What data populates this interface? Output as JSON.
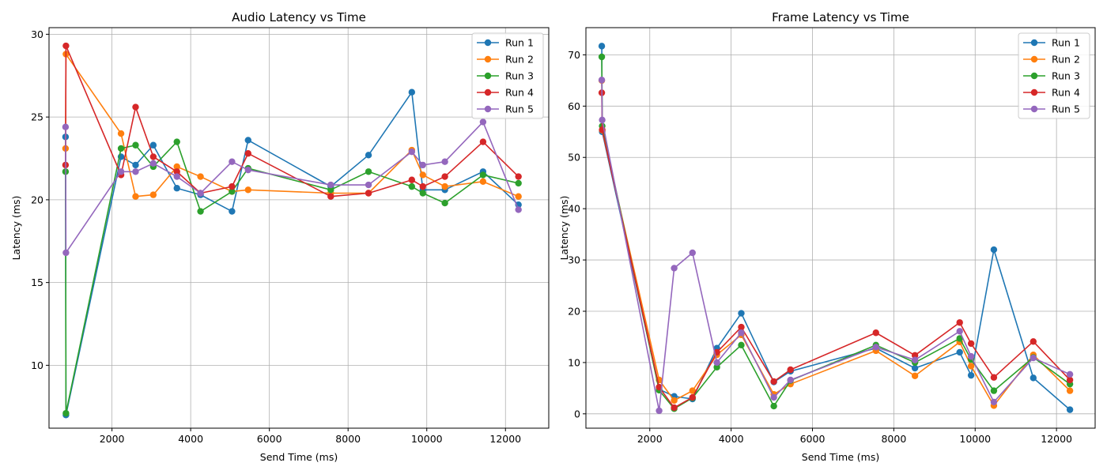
{
  "figure": {
    "background": "#ffffff"
  },
  "charts": [
    {
      "type": "line",
      "title": "Audio Latency vs Time",
      "xlabel": "Send Time (ms)",
      "ylabel": "Latency (ms)",
      "xlim": [
        400,
        13100
      ],
      "ylim": [
        6.2,
        30.4
      ],
      "xticks": [
        2000,
        4000,
        6000,
        8000,
        10000,
        12000
      ],
      "yticks": [
        10,
        15,
        20,
        25,
        30
      ],
      "grid": true,
      "legend_position": "top-right",
      "series": [
        {
          "name": "Run 1",
          "color": "#1f77b4",
          "points": [
            [
              820,
              23.8
            ],
            [
              830,
              7.0
            ],
            [
              2230,
              22.6
            ],
            [
              2600,
              22.1
            ],
            [
              3050,
              23.3
            ],
            [
              3650,
              20.7
            ],
            [
              4250,
              20.3
            ],
            [
              5050,
              19.3
            ],
            [
              5460,
              23.6
            ],
            [
              7560,
              20.8
            ],
            [
              8520,
              22.7
            ],
            [
              9620,
              26.5
            ],
            [
              9900,
              20.6
            ],
            [
              10460,
              20.6
            ],
            [
              11430,
              21.7
            ],
            [
              12330,
              19.7
            ]
          ]
        },
        {
          "name": "Run 2",
          "color": "#ff7f0e",
          "points": [
            [
              820,
              23.1
            ],
            [
              830,
              28.8
            ],
            [
              2230,
              24.0
            ],
            [
              2600,
              20.2
            ],
            [
              3050,
              20.3
            ],
            [
              3650,
              22.0
            ],
            [
              4250,
              21.4
            ],
            [
              5050,
              20.5
            ],
            [
              5460,
              20.6
            ],
            [
              7560,
              20.4
            ],
            [
              8520,
              20.4
            ],
            [
              9620,
              23.0
            ],
            [
              9900,
              21.5
            ],
            [
              10460,
              20.8
            ],
            [
              11430,
              21.1
            ],
            [
              12330,
              20.2
            ]
          ]
        },
        {
          "name": "Run 3",
          "color": "#2ca02c",
          "points": [
            [
              820,
              21.7
            ],
            [
              830,
              7.1
            ],
            [
              2230,
              23.1
            ],
            [
              2600,
              23.3
            ],
            [
              3050,
              22.0
            ],
            [
              3650,
              23.5
            ],
            [
              4250,
              19.3
            ],
            [
              5050,
              20.5
            ],
            [
              5460,
              21.9
            ],
            [
              7560,
              20.6
            ],
            [
              8520,
              21.7
            ],
            [
              9620,
              20.8
            ],
            [
              9900,
              20.4
            ],
            [
              10460,
              19.8
            ],
            [
              11430,
              21.5
            ],
            [
              12330,
              21.0
            ]
          ]
        },
        {
          "name": "Run 4",
          "color": "#d62728",
          "points": [
            [
              820,
              22.1
            ],
            [
              830,
              29.3
            ],
            [
              2230,
              21.5
            ],
            [
              2600,
              25.6
            ],
            [
              3050,
              22.6
            ],
            [
              3650,
              21.7
            ],
            [
              4250,
              20.4
            ],
            [
              5050,
              20.8
            ],
            [
              5460,
              22.8
            ],
            [
              7560,
              20.2
            ],
            [
              8520,
              20.4
            ],
            [
              9620,
              21.2
            ],
            [
              9900,
              20.8
            ],
            [
              10460,
              21.4
            ],
            [
              11430,
              23.5
            ],
            [
              12330,
              21.4
            ]
          ]
        },
        {
          "name": "Run 5",
          "color": "#9467bd",
          "points": [
            [
              820,
              24.4
            ],
            [
              830,
              16.8
            ],
            [
              2230,
              21.7
            ],
            [
              2600,
              21.7
            ],
            [
              3050,
              22.2
            ],
            [
              3650,
              21.4
            ],
            [
              4250,
              20.4
            ],
            [
              5050,
              22.3
            ],
            [
              5460,
              21.8
            ],
            [
              7560,
              20.9
            ],
            [
              8520,
              20.9
            ],
            [
              9620,
              22.9
            ],
            [
              9900,
              22.1
            ],
            [
              10460,
              22.3
            ],
            [
              11430,
              24.7
            ],
            [
              12330,
              19.4
            ]
          ]
        }
      ]
    },
    {
      "type": "line",
      "title": "Frame Latency vs Time",
      "xlabel": "Send Time (ms)",
      "ylabel": "Latency (ms)",
      "xlim": [
        430,
        12950
      ],
      "ylim": [
        -2.8,
        75.3
      ],
      "xticks": [
        2000,
        4000,
        6000,
        8000,
        10000,
        12000
      ],
      "yticks": [
        0,
        10,
        20,
        30,
        40,
        50,
        60,
        70
      ],
      "grid": true,
      "legend_position": "top-right",
      "series": [
        {
          "name": "Run 1",
          "color": "#1f77b4",
          "points": [
            [
              820,
              71.7
            ],
            [
              830,
              55.0
            ],
            [
              2230,
              4.8
            ],
            [
              2600,
              3.4
            ],
            [
              3050,
              2.9
            ],
            [
              3650,
              12.8
            ],
            [
              4250,
              19.6
            ],
            [
              5050,
              6.2
            ],
            [
              5460,
              8.3
            ],
            [
              7560,
              12.8
            ],
            [
              8520,
              8.9
            ],
            [
              9620,
              12.0
            ],
            [
              9900,
              7.5
            ],
            [
              10460,
              32.0
            ],
            [
              11430,
              7.0
            ],
            [
              12330,
              0.8
            ]
          ]
        },
        {
          "name": "Run 2",
          "color": "#ff7f0e",
          "points": [
            [
              820,
              65.0
            ],
            [
              830,
              55.3
            ],
            [
              2230,
              6.6
            ],
            [
              2600,
              2.6
            ],
            [
              3050,
              4.5
            ],
            [
              3650,
              11.5
            ],
            [
              4250,
              15.4
            ],
            [
              5050,
              3.8
            ],
            [
              5460,
              5.8
            ],
            [
              7560,
              12.3
            ],
            [
              8520,
              7.4
            ],
            [
              9620,
              14.0
            ],
            [
              9900,
              9.3
            ],
            [
              10460,
              1.6
            ],
            [
              11430,
              11.5
            ],
            [
              12330,
              4.5
            ]
          ]
        },
        {
          "name": "Run 3",
          "color": "#2ca02c",
          "points": [
            [
              820,
              69.6
            ],
            [
              830,
              56.1
            ],
            [
              2230,
              4.6
            ],
            [
              2600,
              1.0
            ],
            [
              3050,
              3.1
            ],
            [
              3650,
              9.1
            ],
            [
              4250,
              13.4
            ],
            [
              5050,
              1.5
            ],
            [
              5460,
              6.5
            ],
            [
              7560,
              13.4
            ],
            [
              8520,
              10.0
            ],
            [
              9620,
              14.7
            ],
            [
              9900,
              10.6
            ],
            [
              10460,
              4.5
            ],
            [
              11430,
              11.0
            ],
            [
              12330,
              5.8
            ]
          ]
        },
        {
          "name": "Run 4",
          "color": "#d62728",
          "points": [
            [
              820,
              62.6
            ],
            [
              830,
              55.4
            ],
            [
              2230,
              5.2
            ],
            [
              2600,
              1.2
            ],
            [
              3050,
              3.2
            ],
            [
              3650,
              12.0
            ],
            [
              4250,
              16.9
            ],
            [
              5050,
              6.3
            ],
            [
              5460,
              8.6
            ],
            [
              7560,
              15.8
            ],
            [
              8520,
              11.4
            ],
            [
              9620,
              17.8
            ],
            [
              9900,
              13.7
            ],
            [
              10460,
              7.1
            ],
            [
              11430,
              14.1
            ],
            [
              12330,
              6.6
            ]
          ]
        },
        {
          "name": "Run 5",
          "color": "#9467bd",
          "points": [
            [
              820,
              65.1
            ],
            [
              830,
              57.3
            ],
            [
              2230,
              0.6
            ],
            [
              2600,
              28.4
            ],
            [
              3050,
              31.4
            ],
            [
              3650,
              10.0
            ],
            [
              4250,
              15.8
            ],
            [
              5050,
              3.2
            ],
            [
              5460,
              6.6
            ],
            [
              7560,
              13.0
            ],
            [
              8520,
              10.5
            ],
            [
              9620,
              16.1
            ],
            [
              9900,
              11.2
            ],
            [
              10460,
              2.3
            ],
            [
              11430,
              10.9
            ],
            [
              12330,
              7.7
            ]
          ]
        }
      ]
    }
  ]
}
